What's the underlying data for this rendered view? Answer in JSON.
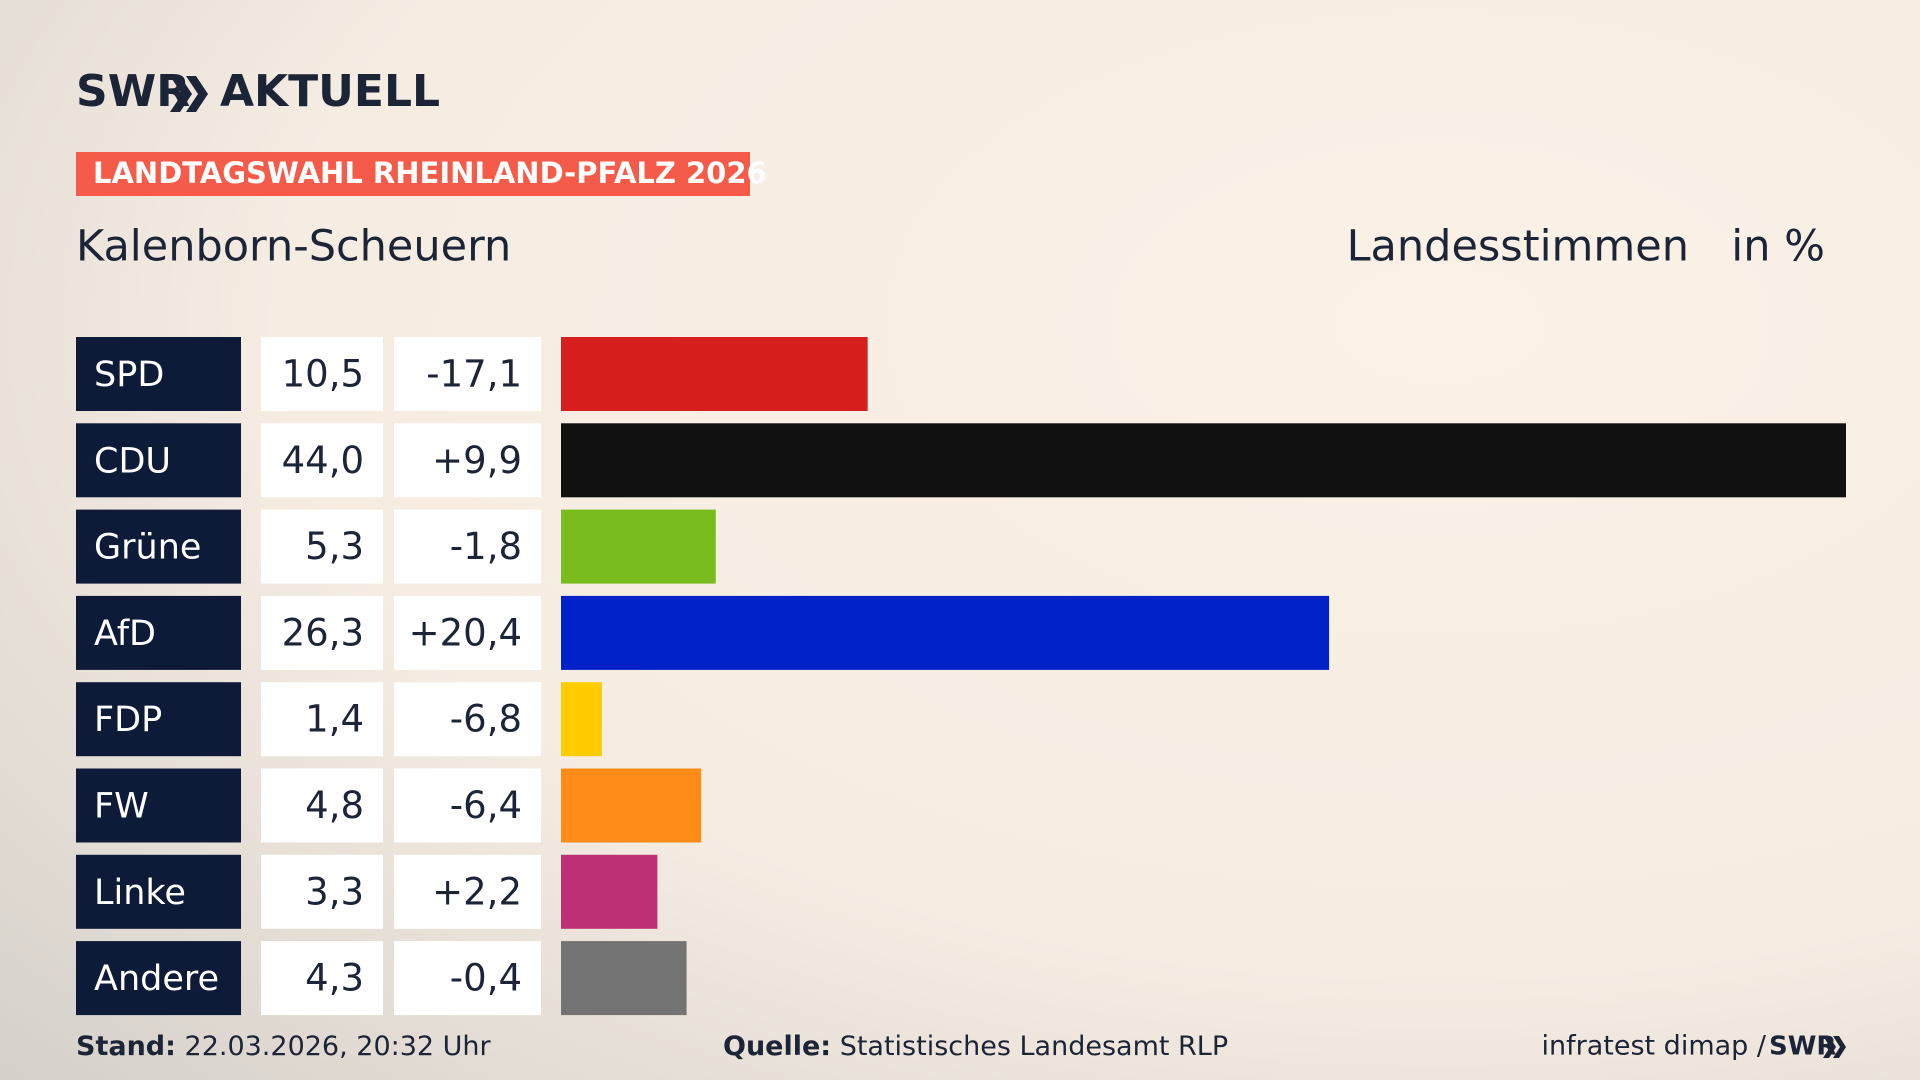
{
  "chart_data": {
    "type": "bar",
    "orientation": "horizontal",
    "logo": "SWR",
    "logo_title": "AKTUELL",
    "kicker": "LANDTAGSWAHL RHEINLAND-PFALZ 2026",
    "title": "Kalenborn-Scheuern",
    "measure": "Landesstimmen",
    "unit": "in %",
    "categories": [
      "SPD",
      "CDU",
      "Grüne",
      "AfD",
      "FDP",
      "FW",
      "Linke",
      "Andere"
    ],
    "values": [
      10.5,
      44.0,
      5.3,
      26.3,
      1.4,
      4.8,
      3.3,
      4.3
    ],
    "value_labels": [
      "10,5",
      "44,0",
      "5,3",
      "26,3",
      "1,4",
      "4,8",
      "3,3",
      "4,3"
    ],
    "changes": [
      {
        "value": -17.1,
        "label": "-17,1"
      },
      {
        "value": 9.9,
        "label": "+9,9"
      },
      {
        "value": -1.8,
        "label": "-1,8"
      },
      {
        "value": 20.4,
        "label": "+20,4"
      },
      {
        "value": -6.8,
        "label": "-6,8"
      },
      {
        "value": -6.4,
        "label": "-6,4"
      },
      {
        "value": 2.2,
        "label": "+2,2"
      },
      {
        "value": -0.4,
        "label": "-0,4"
      }
    ],
    "colors": [
      "#d71f1f",
      "#111111",
      "#79bc1e",
      "#0022c8",
      "#ffcc00",
      "#ff8c19",
      "#bd3075",
      "#737373"
    ],
    "xlim": [
      0,
      44.0
    ],
    "stand_label": "Stand:",
    "stand": "22.03.2026, 20:32 Uhr",
    "source_label": "Quelle:",
    "source": "Statistisches Landesamt RLP",
    "credit": "infratest dimap /",
    "credit_brand": "SWR"
  }
}
